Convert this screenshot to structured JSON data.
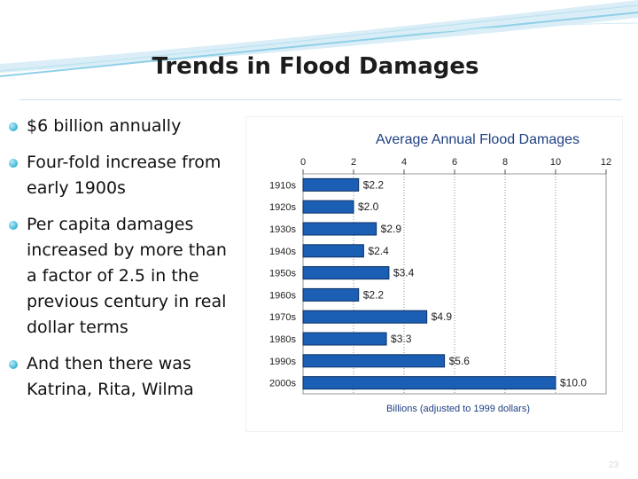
{
  "slide": {
    "title": "Trends in Flood Damages",
    "page_number": "23",
    "bullets": [
      "$6 billion annually",
      "Four-fold increase from early 1900s",
      "Per capita damages increased by more than a factor of 2.5 in the previous century in real dollar terms",
      "And then there was Katrina, Rita, Wilma"
    ]
  },
  "chart_data": {
    "type": "bar",
    "orientation": "horizontal",
    "title": "Average Annual Flood Damages",
    "xlabel": "Billions (adjusted to 1999 dollars)",
    "ylabel": "",
    "xlim": [
      0,
      12
    ],
    "x_ticks": [
      "0",
      "2",
      "4",
      "6",
      "8",
      "10",
      "12"
    ],
    "x_axis_position": "top",
    "categories": [
      "1910s",
      "1920s",
      "1930s",
      "1940s",
      "1950s",
      "1960s",
      "1970s",
      "1980s",
      "1990s",
      "2000s"
    ],
    "values": [
      2.2,
      2.0,
      2.9,
      2.4,
      3.4,
      2.2,
      4.9,
      3.3,
      5.6,
      10.0
    ],
    "data_labels": [
      "$2.2",
      "$2.0",
      "$2.9",
      "$2.4",
      "$3.4",
      "$2.2",
      "$4.9",
      "$3.3",
      "$5.6",
      "$10.0"
    ],
    "grid": "vertical",
    "bar_color": "#1a5fb4",
    "title_color": "#1e3f82"
  }
}
